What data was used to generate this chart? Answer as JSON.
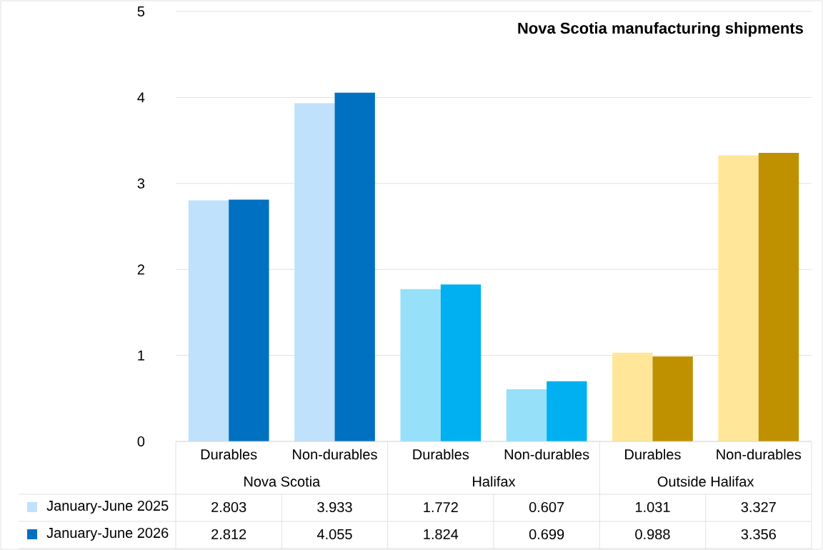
{
  "chart_data": {
    "type": "bar",
    "title": "Nova Scotia manufacturing shipments",
    "categories": [
      "Durables",
      "Non-durables",
      "Durables",
      "Non-durables",
      "Durables",
      "Non-durables"
    ],
    "annotations": [
      "Nova Scotia",
      "Halifax",
      "Outside Halifax"
    ],
    "series": [
      {
        "name": "January-June 2025",
        "values": [
          2.803,
          3.933,
          1.772,
          0.607,
          1.031,
          3.327
        ],
        "colors": [
          "#bfe1fb",
          "#bfe1fb",
          "#96e0fa",
          "#96e0fa",
          "#ffe699",
          "#ffe699"
        ]
      },
      {
        "name": "January-June 2026",
        "values": [
          2.812,
          4.055,
          1.824,
          0.699,
          0.988,
          3.356
        ],
        "colors": [
          "#0070c0",
          "#0070c0",
          "#00b0f0",
          "#00b0f0",
          "#bf9000",
          "#bf9000"
        ]
      }
    ],
    "ylim": [
      0,
      5
    ],
    "yticks": [
      0,
      1,
      2,
      3,
      4,
      5
    ],
    "grid": "y",
    "legend": "bottom left",
    "data_labels": true
  }
}
